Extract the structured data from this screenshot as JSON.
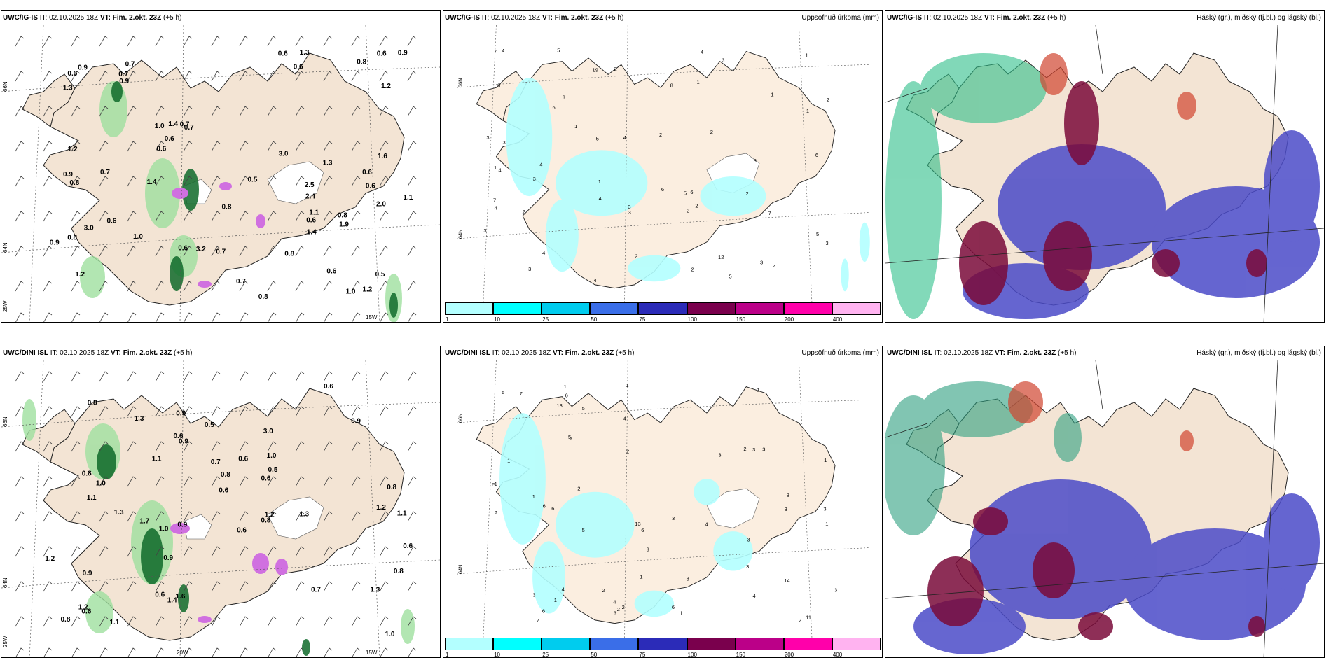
{
  "panels": [
    {
      "id": "p1",
      "model": "UWC/IG-IS",
      "it_label": "IT:",
      "it_value": "02.10.2025 18Z",
      "vt_label": "VT:",
      "vt_value": "Fim. 2.okt. 23Z",
      "lead": "(+5 h)",
      "right_title": "",
      "axis": {
        "n66": "66N",
        "n64": "64N",
        "w25": "25W",
        "w15": "15W",
        "w20": ""
      },
      "labels": [
        "2.4",
        "0.6",
        "1.2",
        "0.7",
        "0.7",
        "0.6",
        "0.8",
        "0.6",
        "1.0",
        "0.8",
        "1.3",
        "0.9",
        "0.6",
        "0.5",
        "0.6",
        "1.6",
        "0.8",
        "0.5",
        "0.7",
        "0.6",
        "0.9",
        "0.8",
        "0.6",
        "2.0",
        "0.6",
        "0.7",
        "1.1",
        "0.8",
        "0.9",
        "1.3",
        "0.7",
        "0.8",
        "0.6",
        "1.4",
        "0.6",
        "1.9",
        "0.6",
        "0.7",
        "0.7",
        "3.0",
        "1.2",
        "1.3",
        "1.2",
        "3.2",
        "0.8",
        "1.0",
        "0.9",
        "0.9",
        "3.0",
        "1.2",
        "1.1",
        "1.4",
        "0.6",
        "2.5",
        "1.4",
        "1.0"
      ]
    },
    {
      "id": "p2",
      "model": "UWC/IG-IS",
      "it_label": "IT:",
      "it_value": "02.10.2025 18Z",
      "vt_label": "VT:",
      "vt_value": "Fim. 2.okt. 23Z",
      "lead": "(+5 h)",
      "right_title": "Uppsöfnuð úrkoma (mm)",
      "axis": {
        "n66": "66N",
        "n64": "64N"
      },
      "labels": [
        "2",
        "3",
        "1",
        "2",
        "1",
        "4",
        "3",
        "6",
        "5",
        "2",
        "4",
        "3",
        "2",
        "3",
        "7",
        "5",
        "2",
        "4",
        "4",
        "6",
        "7",
        "5",
        "3",
        "3",
        "7",
        "4",
        "12",
        "4",
        "3",
        "3",
        "6",
        "4",
        "2",
        "9",
        "6",
        "5",
        "5",
        "3",
        "4",
        "3",
        "4",
        "8",
        "2",
        "19",
        "3",
        "1",
        "3",
        "2",
        "2",
        "1",
        "1",
        "1",
        "1",
        "4",
        "2"
      ],
      "colorbar": {
        "ticks": [
          "1",
          "10",
          "25",
          "50",
          "75",
          "100",
          "150",
          "200",
          "400"
        ],
        "colors": [
          "#b3ffff",
          "#00ffff",
          "#00ccee",
          "#3a6ee8",
          "#2b2bb8",
          "#7a004d",
          "#bb0088",
          "#ff00aa",
          "#ffb3f0"
        ]
      }
    },
    {
      "id": "p3",
      "model": "UWC/IG-IS",
      "it_label": "IT:",
      "it_value": "02.10.2025 18Z",
      "vt_label": "VT:",
      "vt_value": "Fim. 2.okt. 23Z",
      "lead": "(+5 h)",
      "right_title": "Háský (gr.), miðský (fj.bl.) og lágský (bl.)"
    },
    {
      "id": "p4",
      "model": "UWC/DINI ISL",
      "it_label": "IT:",
      "it_value": "02.10.2025 18Z",
      "vt_label": "VT:",
      "vt_value": "Fim. 2.okt. 23Z",
      "lead": "(+5 h)",
      "right_title": "",
      "axis": {
        "n66": "66N",
        "n64": "64N",
        "w25": "25W",
        "w15": "15W",
        "w20": "20W"
      },
      "labels": [
        "0.6",
        "0.9",
        "0.7",
        "1.1",
        "0.8",
        "0.6",
        "0.8",
        "0.9",
        "1.7",
        "1.3",
        "1.1",
        "0.9",
        "1.2",
        "0.9",
        "1.2",
        "1.1",
        "1.3",
        "1.0",
        "0.8",
        "1.0",
        "0.6",
        "0.8",
        "0.6",
        "0.6",
        "0.6",
        "1.4",
        "0.8",
        "1.2",
        "0.8",
        "1.0",
        "1.3",
        "1.0",
        "0.9",
        "0.6",
        "0.7",
        "0.6",
        "0.8",
        "0.5",
        "0.5",
        "0.6",
        "3.0",
        "1.1",
        "0.9",
        "1.2",
        "1.6",
        "1.3"
      ]
    },
    {
      "id": "p5",
      "model": "UWC/DINI ISL",
      "it_label": "IT:",
      "it_value": "02.10.2025 18Z",
      "vt_label": "VT:",
      "vt_value": "Fim. 2.okt. 23Z",
      "lead": "(+5 h)",
      "right_title": "Uppsöfnuð úrkoma (mm)",
      "axis": {
        "n66": "66N",
        "n64": "64N"
      },
      "labels": [
        "1",
        "1",
        "2",
        "3",
        "1",
        "4",
        "3",
        "5",
        "5",
        "6",
        "1",
        "1",
        "1",
        "2",
        "1",
        "3",
        "5",
        "4",
        "5",
        "6",
        "6",
        "3",
        "4",
        "4",
        "4",
        "3",
        "13",
        "8",
        "14",
        "6",
        "7",
        "5",
        "2",
        "6",
        "4",
        "2",
        "8",
        "6",
        "3",
        "3",
        "3",
        "1",
        "1",
        "11",
        "7",
        "13",
        "1",
        "3",
        "2",
        "2",
        "1",
        "3",
        "3",
        "5",
        "3",
        "2"
      ],
      "colorbar": {
        "ticks": [
          "1",
          "10",
          "25",
          "50",
          "75",
          "100",
          "150",
          "200",
          "400"
        ],
        "colors": [
          "#b3ffff",
          "#00ffff",
          "#00ccee",
          "#3a6ee8",
          "#2b2bb8",
          "#7a004d",
          "#bb0088",
          "#ff00aa",
          "#ffb3f0"
        ]
      }
    },
    {
      "id": "p6",
      "model": "UWC/DINI ISL",
      "it_label": "IT:",
      "it_value": "02.10.2025 18Z",
      "vt_label": "VT:",
      "vt_value": "Fim. 2.okt. 23Z",
      "lead": "(+5 h)",
      "right_title": "Háský (gr.), miðský (fj.bl.) og lágský (bl.)"
    }
  ]
}
